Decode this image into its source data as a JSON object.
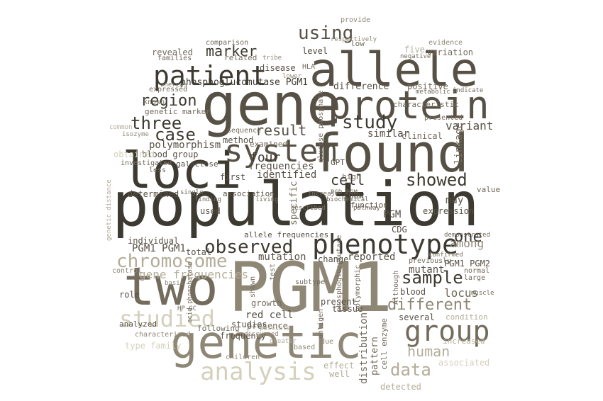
{
  "words": {
    "population": "population",
    "PGM1": "PGM1",
    "gene": "gene",
    "found": "found",
    "allele": "allele",
    "loci": "loci",
    "genetic": "genetic",
    "two": "two",
    "protein": "protein",
    "system": "system",
    "phenotype": "phenotype",
    "patient": "patient",
    "analysis": "analysis",
    "group": "group",
    "studied": "studied",
    "chromosome": "chromosome",
    "observed": "observed",
    "study": "study",
    "using": "using",
    "marker": "marker",
    "three": "three",
    "case": "case",
    "region": "region",
    "sample": "sample",
    "different": "different",
    "data": "data",
    "human": "human",
    "showed": "showed",
    "cell": "cell",
    "result": "result",
    "one": "one",
    "locus": "locus",
    "four": "four",
    "variant": "variant",
    "gene_frequencies": "gene frequencies",
    "PGM1_PGM1": "PGM1 PGM1",
    "PGM1_PGM2": "PGM1 PGM2",
    "phosphoglucomutase_PGM1": "phosphoglucomutase PGM1",
    "polymorphism": "polymorphism",
    "blood_group": "blood group",
    "mutation": "mutation",
    "reported": "reported",
    "among": "among",
    "mutant": "mutant",
    "individual": "individual",
    "frequencies": "frequencies",
    "identified": "identified",
    "method": "method",
    "similar": "similar",
    "expression": "expression",
    "may": "may",
    "disease": "disease",
    "level": "level",
    "difference": "difference",
    "revealed": "revealed",
    "clinical": "clinical",
    "characteristic": "characteristic",
    "positive": "positive",
    "variation": "variation",
    "five": "five",
    "frequency": "frequency",
    "red_cell": "red cell",
    "presence": "presence",
    "growth": "growth",
    "studies": "studies",
    "role": "role",
    "analyzed": "analyzed",
    "effect": "effect",
    "well": "well",
    "detected": "detected",
    "associated": "associated",
    "increased": "increased",
    "condition": "condition",
    "several": "several",
    "blood": "blood",
    "tissue": "tissue",
    "present": "present",
    "distribution": "distribution",
    "pattern": "pattern",
    "cell_enzyme": "cell enzyme",
    "PGM": "PGM",
    "CDG": "CDG",
    "show": "show",
    "function": "function",
    "specific": "specific",
    "change": "change",
    "used": "used",
    "association": "association",
    "first": "first",
    "determined": "determined",
    "total": "total",
    "allele_frequencies": "allele frequencies",
    "galactose": "galactose",
    "related": "related",
    "comparison": "comparison",
    "low": "low",
    "provide": "provide",
    "evidence": "evidence",
    "HLA": "HLA",
    "linkage": "linkage",
    "genetic_marker": "genetic marker",
    "known": "known",
    "expressed": "expressed",
    "examined": "examined",
    "sequence": "sequence",
    "investigated": "investigated",
    "obtained": "obtained",
    "less": "less",
    "high": "high",
    "value": "value",
    "large": "large",
    "normal": "normal",
    "muscle": "muscle",
    "previously": "previously",
    "confirmed": "confirmed",
    "demonstrated": "demonstrated",
    "presented": "presented",
    "subtype": "subtype",
    "based": "based",
    "due": "due",
    "children": "children",
    "following": "following",
    "characterized": "characterized",
    "type_family": "type family",
    "control": "control",
    "GPT": "GPT",
    "PGD_PGM": "PGD PGM",
    "increase": "increase",
    "biochemical": "biochemical",
    "pathway": "pathway",
    "described": "described",
    "living": "living",
    "finding": "finding",
    "single": "single",
    "basis": "basis",
    "families": "families",
    "whereas": "whereas",
    "isozyme": "isozyme",
    "common": "common",
    "metabolic": "metabolic",
    "indicate": "indicate",
    "negative": "negative",
    "respectively": "respectively",
    "tribe": "tribe",
    "lower": "lower",
    "glucose_phosphate": "glucose phosphate",
    "phosphoglucomutase": "phosphoglucomutase",
    "polymorphic": "polymorphic",
    "test": "test",
    "shown": "shown",
    "antigen": "antigen",
    "Although": "Although",
    "acid_phosphatase": "acid phosphatase",
    "genetic_distance": "genetic distance",
    "possible": "possible",
    "discussed": "discussed",
    "greater": "greater",
    "HP_GC": "HP GC"
  }
}
